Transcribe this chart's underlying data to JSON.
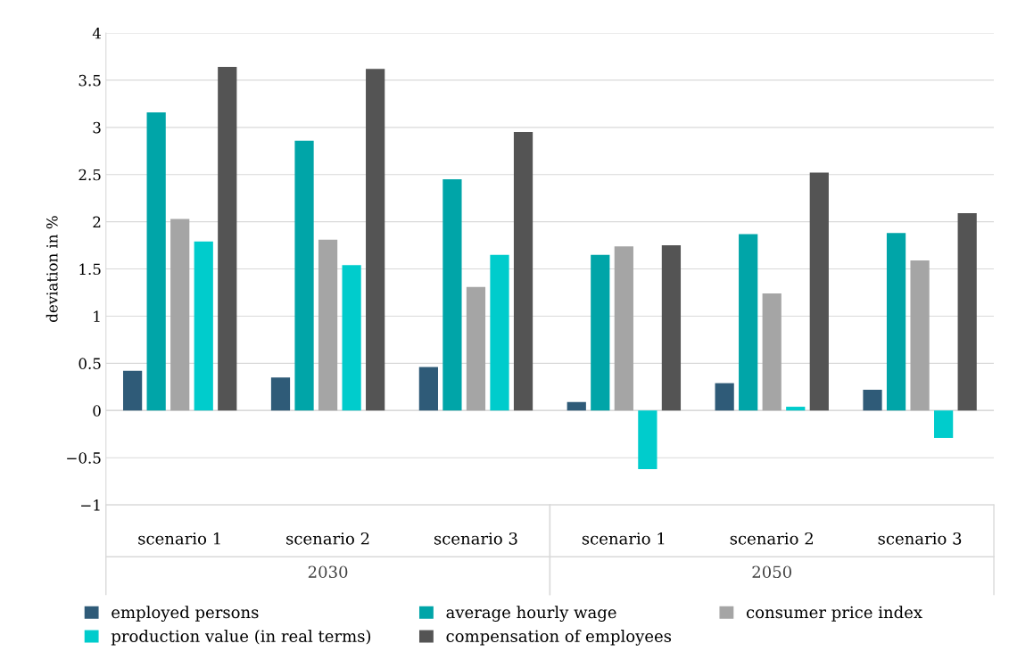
{
  "chart_data": {
    "type": "bar",
    "ylabel": "deviation in %",
    "categories": [
      "scenario 1",
      "scenario 2",
      "scenario 3",
      "scenario 1",
      "scenario 2",
      "scenario 3"
    ],
    "annotations": [
      "2030",
      "2050"
    ],
    "series": [
      {
        "name": "employed persons",
        "color": "#2f5b78",
        "values": [
          0.42,
          0.35,
          0.46,
          0.09,
          0.29,
          0.22
        ]
      },
      {
        "name": "average hourly wage",
        "color": "#00a5a8",
        "values": [
          3.16,
          2.86,
          2.45,
          1.65,
          1.87,
          1.88
        ]
      },
      {
        "name": "consumer price index",
        "color": "#a5a5a5",
        "values": [
          2.03,
          1.81,
          1.31,
          1.74,
          1.24,
          1.59
        ]
      },
      {
        "name": "production value (in real terms)",
        "color": "#00cccc",
        "values": [
          1.79,
          1.54,
          1.65,
          -0.62,
          0.04,
          -0.29
        ]
      },
      {
        "name": "compensation of employees",
        "color": "#545454",
        "values": [
          3.64,
          3.62,
          2.95,
          1.75,
          2.52,
          2.09
        ]
      }
    ],
    "ylim": [
      -1,
      4
    ],
    "yticks": [
      {
        "value": -1,
        "label": "−1"
      },
      {
        "value": -0.5,
        "label": "−0.5"
      },
      0,
      0.5,
      1,
      1.5,
      2,
      2.5,
      3,
      3.5,
      4
    ],
    "grid": "y",
    "legend": "bottom"
  }
}
